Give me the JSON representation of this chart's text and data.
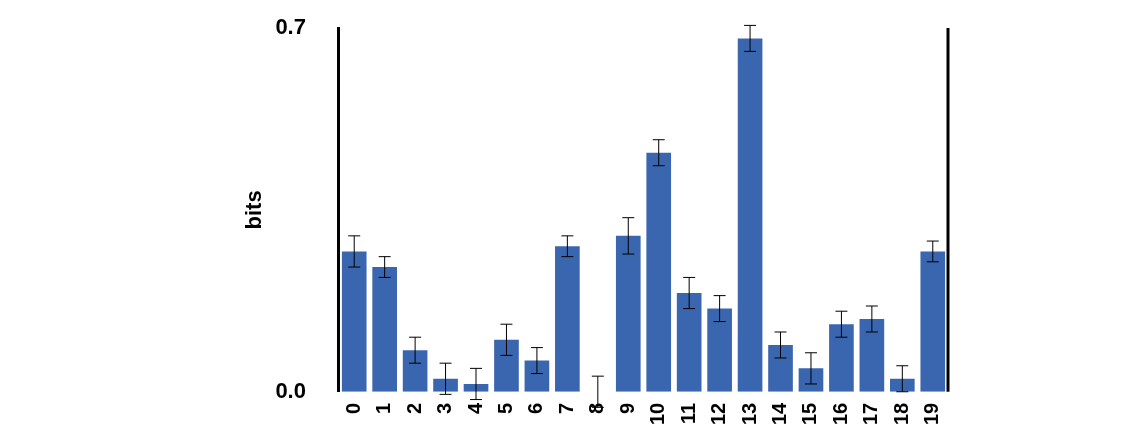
{
  "chart_data": {
    "type": "bar",
    "ylabel": "bits",
    "categories": [
      "0",
      "1",
      "2",
      "3",
      "4",
      "5",
      "6",
      "7",
      "8",
      "9",
      "10",
      "11",
      "12",
      "13",
      "14",
      "15",
      "16",
      "17",
      "18",
      "19"
    ],
    "values": [
      0.27,
      0.24,
      0.08,
      0.025,
      0.015,
      0.1,
      0.06,
      0.28,
      0,
      0.3,
      0.46,
      0.19,
      0.16,
      0.68,
      0.09,
      0.045,
      0.13,
      0.14,
      0.025,
      0.27
    ],
    "errors": [
      0.03,
      0.02,
      0.025,
      0.03,
      0.03,
      0.03,
      0.025,
      0.02,
      0.03,
      0.035,
      0.025,
      0.03,
      0.025,
      0.025,
      0.025,
      0.03,
      0.025,
      0.025,
      0.025,
      0.02
    ],
    "color": "#3a66b0",
    "ylim": [
      0,
      0.7
    ],
    "yticks": [
      {
        "value": 0,
        "label": "0.0"
      },
      0.7
    ],
    "grid": false
  }
}
